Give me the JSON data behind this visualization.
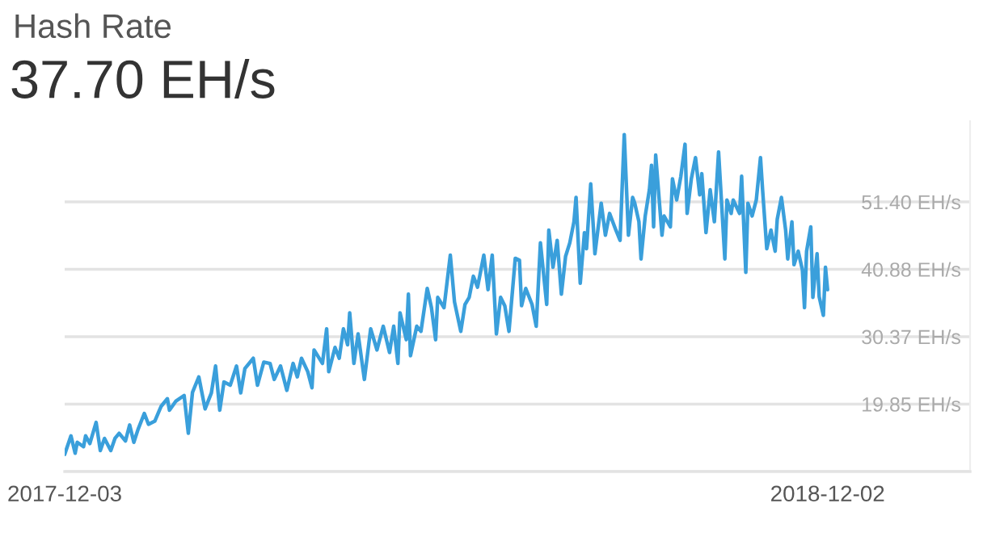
{
  "chart_data": {
    "type": "line",
    "title": "Hash Rate",
    "subtitle": "37.70 EH/s",
    "x": [
      "2017-12-03",
      "2017-12-06",
      "2017-12-08",
      "2017-12-09",
      "2017-12-12",
      "2017-12-13",
      "2017-12-15",
      "2017-12-18",
      "2017-12-20",
      "2017-12-22",
      "2017-12-25",
      "2017-12-27",
      "2017-12-29",
      "2018-01-01",
      "2018-01-03",
      "2018-01-05",
      "2018-01-07",
      "2018-01-10",
      "2018-01-12",
      "2018-01-15",
      "2018-01-18",
      "2018-01-21",
      "2018-01-22",
      "2018-01-25",
      "2018-01-29",
      "2018-01-31",
      "2018-02-02",
      "2018-02-05",
      "2018-02-08",
      "2018-02-11",
      "2018-02-13",
      "2018-02-15",
      "2018-02-17",
      "2018-02-20",
      "2018-02-23",
      "2018-02-25",
      "2018-02-27",
      "2018-03-03",
      "2018-03-05",
      "2018-03-08",
      "2018-03-11",
      "2018-03-13",
      "2018-03-16",
      "2018-03-19",
      "2018-03-22",
      "2018-03-24",
      "2018-03-26",
      "2018-03-29",
      "2018-03-31",
      "2018-04-01",
      "2018-04-05",
      "2018-04-07",
      "2018-04-08",
      "2018-04-11",
      "2018-04-13",
      "2018-04-15",
      "2018-04-17",
      "2018-04-18",
      "2018-04-20",
      "2018-04-22",
      "2018-04-25",
      "2018-04-28",
      "2018-05-01",
      "2018-05-04",
      "2018-05-07",
      "2018-05-09",
      "2018-05-11",
      "2018-05-12",
      "2018-05-15",
      "2018-05-16",
      "2018-05-17",
      "2018-05-20",
      "2018-05-22",
      "2018-05-25",
      "2018-05-27",
      "2018-05-29",
      "2018-05-30",
      "2018-06-02",
      "2018-06-05",
      "2018-06-07",
      "2018-06-10",
      "2018-06-12",
      "2018-06-14",
      "2018-06-16",
      "2018-06-18",
      "2018-06-21",
      "2018-06-23",
      "2018-06-25",
      "2018-06-27",
      "2018-06-29",
      "2018-07-01",
      "2018-07-03",
      "2018-07-06",
      "2018-07-08",
      "2018-07-09",
      "2018-07-11",
      "2018-07-14",
      "2018-07-16",
      "2018-07-18",
      "2018-07-21",
      "2018-07-22",
      "2018-07-24",
      "2018-07-26",
      "2018-07-28",
      "2018-07-30",
      "2018-08-01",
      "2018-08-03",
      "2018-08-04",
      "2018-08-06",
      "2018-08-08",
      "2018-08-09",
      "2018-08-11",
      "2018-08-13",
      "2018-08-16",
      "2018-08-18",
      "2018-08-20",
      "2018-08-23",
      "2018-08-25",
      "2018-08-27",
      "2018-08-29",
      "2018-08-31",
      "2018-09-01",
      "2018-09-03",
      "2018-09-04",
      "2018-09-06",
      "2018-09-08",
      "2018-09-09",
      "2018-09-10",
      "2018-09-11",
      "2018-09-14",
      "2018-09-15",
      "2018-09-18",
      "2018-09-19",
      "2018-09-21",
      "2018-09-23",
      "2018-09-25",
      "2018-09-26",
      "2018-09-28",
      "2018-09-30",
      "2018-10-02",
      "2018-10-03",
      "2018-10-05",
      "2018-10-07",
      "2018-10-09",
      "2018-10-11",
      "2018-10-14",
      "2018-10-15",
      "2018-10-17",
      "2018-10-18",
      "2018-10-21",
      "2018-10-22",
      "2018-10-24",
      "2018-10-25",
      "2018-10-27",
      "2018-10-29",
      "2018-10-31",
      "2018-11-01",
      "2018-11-03",
      "2018-11-05",
      "2018-11-07",
      "2018-11-08",
      "2018-11-10",
      "2018-11-12",
      "2018-11-13",
      "2018-11-15",
      "2018-11-16",
      "2018-11-18",
      "2018-11-20",
      "2018-11-21",
      "2018-11-22",
      "2018-11-24",
      "2018-11-25",
      "2018-11-27",
      "2018-11-28",
      "2018-11-30",
      "2018-12-01",
      "2018-12-02"
    ],
    "series": [
      {
        "color": "#3a9fdb",
        "values": [
          12.0,
          14.9,
          12.2,
          13.9,
          13.2,
          14.9,
          13.7,
          17.0,
          12.6,
          14.5,
          12.6,
          14.5,
          15.3,
          14.1,
          16.6,
          13.9,
          15.9,
          18.4,
          16.7,
          17.2,
          19.5,
          20.7,
          18.9,
          20.3,
          21.2,
          15.3,
          21.7,
          24.1,
          19.1,
          21.6,
          25.8,
          18.9,
          23.3,
          22.8,
          25.8,
          21.6,
          25.4,
          27.0,
          22.8,
          26.4,
          26.2,
          23.7,
          25.8,
          22.0,
          26.2,
          24.1,
          27.0,
          24.9,
          22.4,
          28.3,
          26.2,
          31.6,
          24.9,
          28.7,
          27.0,
          31.6,
          29.1,
          34.1,
          26.2,
          30.8,
          23.7,
          31.6,
          28.3,
          32.0,
          27.9,
          32.0,
          26.2,
          34.1,
          29.9,
          37.0,
          27.4,
          32.0,
          31.2,
          37.9,
          34.9,
          29.9,
          36.5,
          34.9,
          43.1,
          35.8,
          31.2,
          35.4,
          36.5,
          39.8,
          38.1,
          43.1,
          37.7,
          43.1,
          30.8,
          36.5,
          35.2,
          31.2,
          42.6,
          42.3,
          35.2,
          37.9,
          35.4,
          32.0,
          45.0,
          35.4,
          47.0,
          41.2,
          45.4,
          37.0,
          42.9,
          45.0,
          48.3,
          52.1,
          38.7,
          46.6,
          44.1,
          54.2,
          43.3,
          51.2,
          46.2,
          49.6,
          47.0,
          45.4,
          61.9,
          46.2,
          52.1,
          51.2,
          48.3,
          42.5,
          49.2,
          53.3,
          57.1,
          47.5,
          58.7,
          46.2,
          49.2,
          47.5,
          55.0,
          51.7,
          55.4,
          60.4,
          49.6,
          55.0,
          58.3,
          52.5,
          55.8,
          46.6,
          53.3,
          48.3,
          59.2,
          42.5,
          51.7,
          49.6,
          51.7,
          49.6,
          55.4,
          40.4,
          51.2,
          49.2,
          51.7,
          58.3,
          53.3,
          44.1,
          47.0,
          43.7,
          48.7,
          52.1,
          47.0,
          42.5,
          48.3,
          41.6,
          43.7,
          40.8,
          34.9,
          43.7,
          47.5,
          36.5,
          43.3,
          36.6,
          33.7,
          41.2,
          37.7
        ]
      }
    ],
    "xlim": [
      "2017-12-03",
      "2019-02-08"
    ],
    "xticks": [
      "2017-12-03",
      "2018-12-02"
    ],
    "ylim": [
      9.33,
      64
    ],
    "yticks": [
      {
        "value": 9.33,
        "label": null
      },
      {
        "value": 19.85,
        "label": "19.85 EH/s"
      },
      {
        "value": 30.37,
        "label": "30.37 EH/s"
      },
      {
        "value": 40.88,
        "label": "40.88 EH/s"
      },
      {
        "value": 51.4,
        "label": "51.40 EH/s"
      }
    ],
    "grid": "y",
    "marker": "none",
    "line_style": "solid"
  }
}
